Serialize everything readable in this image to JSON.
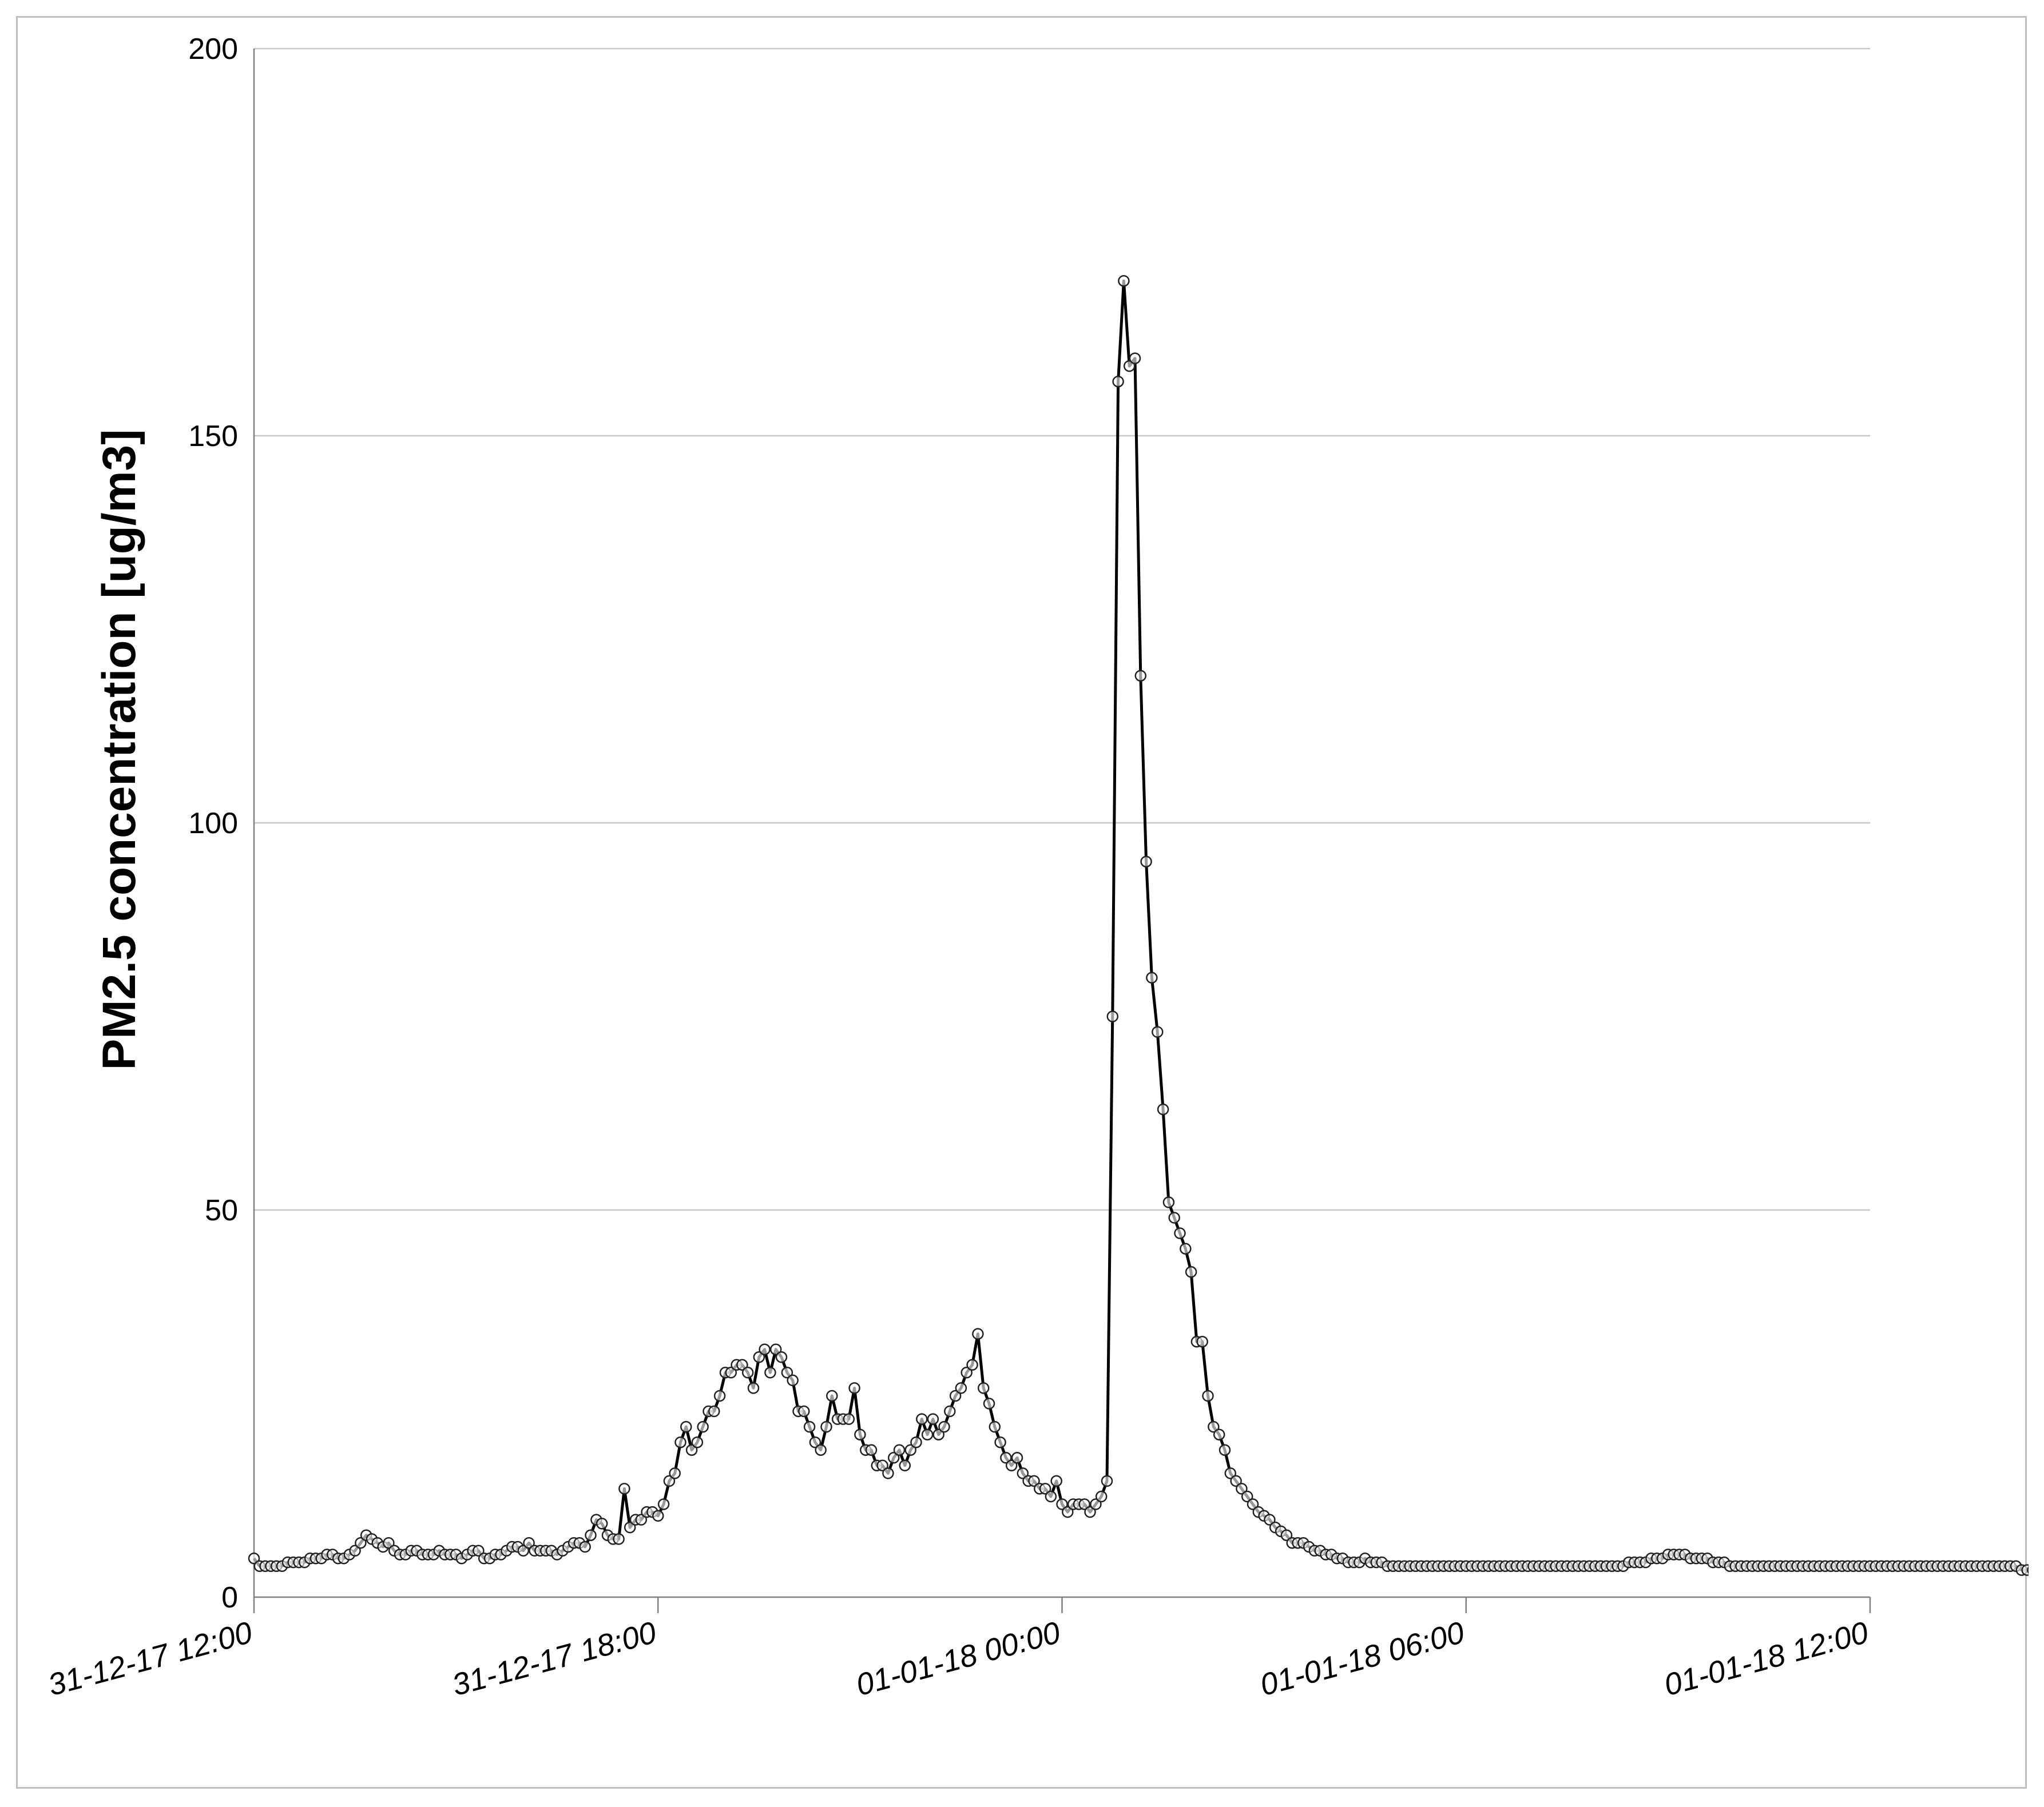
{
  "chart_data": {
    "type": "line",
    "title": "",
    "xlabel": "",
    "ylabel": "PM2.5 concentration [ug/m3]",
    "ylim": [
      0,
      200
    ],
    "yticks": [
      0,
      50,
      100,
      150,
      200
    ],
    "xlim": [
      "31-12-17 12:00",
      "01-01-18 12:00"
    ],
    "xticks": [
      "31-12-17 12:00",
      "31-12-17 18:00",
      "01-01-18 00:00",
      "01-01-18 06:00",
      "01-01-18 12:00"
    ],
    "grid": "horizontal",
    "legend": "none",
    "series_color": "#000000",
    "marker": "open-circle",
    "interval_minutes": 5,
    "series": [
      {
        "x_start": "31-12-17 12:00",
        "values": [
          5,
          4,
          4,
          4,
          4,
          4,
          4.5,
          4.5,
          4.5,
          4.5,
          5,
          5,
          5,
          5.5,
          5.5,
          5,
          5,
          5.5,
          6,
          7,
          8,
          7.5,
          7,
          6.5,
          7,
          6,
          5.5,
          5.5,
          6,
          6,
          5.5,
          5.5,
          5.5,
          6,
          5.5,
          5.5,
          5.5,
          5,
          5.5,
          6,
          6,
          5,
          5,
          5.5,
          5.5,
          6,
          6.5,
          6.5,
          6,
          7,
          6,
          6,
          6,
          6,
          5.5,
          6,
          6.5,
          7,
          7,
          6.5,
          8,
          10,
          9.5,
          8,
          7.5,
          7.5,
          14,
          9,
          10,
          10,
          11,
          11,
          10.5,
          12,
          15,
          16,
          20,
          22,
          19,
          20,
          22,
          24,
          24,
          26,
          29,
          29,
          30,
          30,
          29,
          27,
          31,
          32,
          29,
          32,
          31,
          29,
          28,
          24,
          24,
          22,
          20,
          19,
          22,
          26,
          23,
          23,
          23,
          27,
          21,
          19,
          19,
          17,
          17,
          16,
          18,
          19,
          17,
          19,
          20,
          23,
          21,
          23,
          21,
          22,
          24,
          26,
          27,
          29,
          30,
          34,
          27,
          25,
          22,
          20,
          18,
          17,
          18,
          16,
          15,
          15,
          14,
          14,
          13,
          15,
          12,
          11,
          12,
          12,
          12,
          11,
          12,
          13,
          15,
          75,
          157,
          170,
          159,
          160,
          119,
          95,
          80,
          73,
          63,
          51,
          49,
          47,
          45,
          42,
          33,
          33,
          26,
          22,
          21,
          19,
          16,
          15,
          14,
          13,
          12,
          11,
          10.5,
          10,
          9,
          8.5,
          8,
          7,
          7,
          7,
          6.5,
          6,
          6,
          5.5,
          5.5,
          5,
          5,
          4.5,
          4.5,
          4.5,
          5,
          4.5,
          4.5,
          4.5,
          4,
          4,
          4,
          4,
          4,
          4,
          4,
          4,
          4,
          4,
          4,
          4,
          4,
          4,
          4,
          4,
          4,
          4,
          4,
          4,
          4,
          4,
          4,
          4,
          4,
          4,
          4,
          4,
          4,
          4,
          4,
          4,
          4,
          4,
          4,
          4,
          4,
          4,
          4,
          4,
          4,
          4,
          4,
          4.5,
          4.5,
          4.5,
          4.5,
          5,
          5,
          5,
          5.5,
          5.5,
          5.5,
          5.5,
          5,
          5,
          5,
          5,
          4.5,
          4.5,
          4.5,
          4,
          4,
          4,
          4,
          4,
          4,
          4,
          4,
          4,
          4,
          4,
          4,
          4,
          4,
          4,
          4,
          4,
          4,
          4,
          4,
          4,
          4,
          4,
          4,
          4,
          4,
          4,
          4,
          4,
          4,
          4,
          4,
          4,
          4,
          4,
          4,
          4,
          4,
          4,
          4,
          4,
          4,
          4,
          4,
          4,
          4,
          4,
          4,
          4,
          4,
          4,
          4,
          3.5,
          3.5,
          3.5,
          3.5,
          3.5,
          3.5,
          4,
          4,
          4
        ]
      }
    ]
  }
}
